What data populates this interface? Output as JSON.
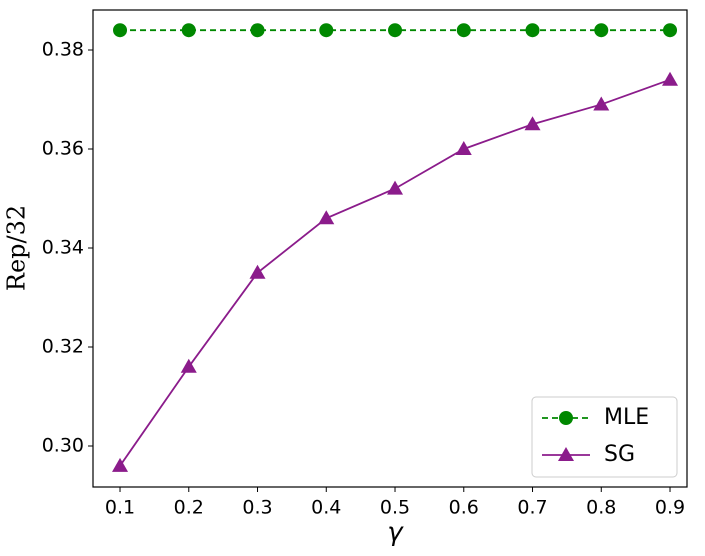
{
  "chart_data": {
    "type": "line",
    "x": [
      0.1,
      0.2,
      0.3,
      0.4,
      0.5,
      0.6,
      0.7,
      0.8,
      0.9
    ],
    "series": [
      {
        "name": "MLE",
        "color": "#008800",
        "marker": "circle",
        "dashed": true,
        "values": [
          0.384,
          0.384,
          0.384,
          0.384,
          0.384,
          0.384,
          0.384,
          0.384,
          0.384
        ]
      },
      {
        "name": "SG",
        "color": "#8b1c8b",
        "marker": "triangle",
        "dashed": false,
        "values": [
          0.296,
          0.316,
          0.335,
          0.346,
          0.352,
          0.36,
          0.365,
          0.369,
          0.374
        ]
      }
    ],
    "xlabel": "γ",
    "ylabel": "Rep/32",
    "xlim": [
      0.0607,
      0.9247
    ],
    "ylim": [
      0.29172,
      0.38808
    ],
    "xticks": [
      0.1,
      0.2,
      0.3,
      0.4,
      0.5,
      0.6,
      0.7,
      0.8,
      0.9
    ],
    "yticks": [
      {
        "value": 0.3,
        "label": "0.30"
      },
      0.32,
      0.34,
      0.36,
      0.38
    ],
    "grid": false,
    "legend": "lower right"
  }
}
